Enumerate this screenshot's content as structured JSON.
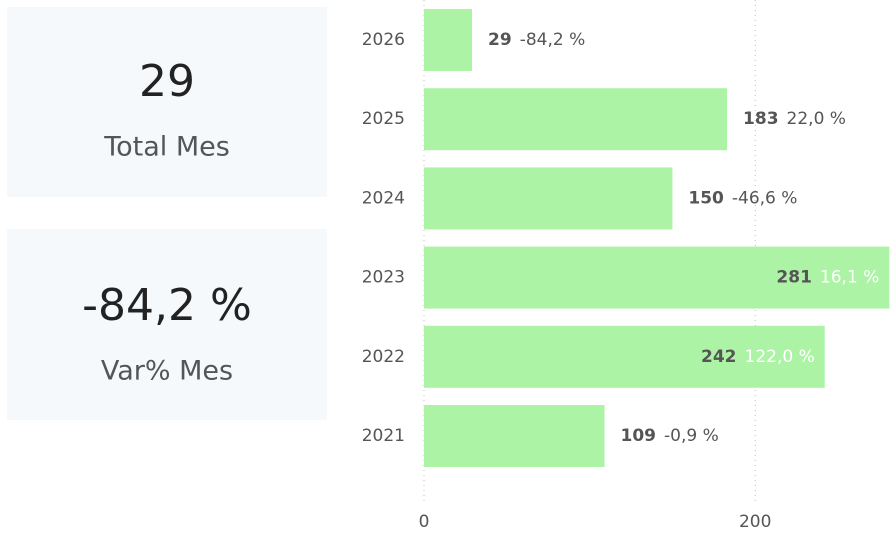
{
  "cards": [
    {
      "value": "29",
      "label": "Total Mes"
    },
    {
      "value": "-84,2 %",
      "label": "Var% Mes"
    }
  ],
  "chart_data": {
    "type": "bar",
    "orientation": "horizontal",
    "categories": [
      "2026",
      "2025",
      "2024",
      "2023",
      "2022",
      "2021"
    ],
    "values": [
      29,
      183,
      150,
      281,
      242,
      109
    ],
    "variation_labels": [
      "-84,2 %",
      "22,0 %",
      "-46,6 %",
      "16,1 %",
      "122,0 %",
      "-0,9 %"
    ],
    "color": "#adf3a6",
    "xlim": [
      0,
      282
    ],
    "xticks": [
      0,
      200
    ],
    "grid": true
  }
}
